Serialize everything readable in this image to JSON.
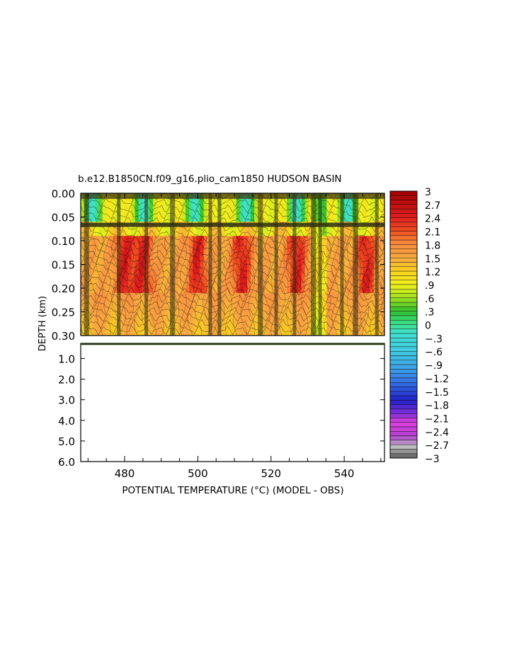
{
  "chart_data": {
    "type": "heatmap",
    "title": "b.e12.B1850CN.f09_g16.plio_cam1850 HUDSON BASIN",
    "xlabel": "POTENTIAL TEMPERATURE (°C) (MODEL - OBS)",
    "ylabel": "DEPTH (km)",
    "xlim": [
      468,
      551
    ],
    "x_ticks": [
      480,
      500,
      520,
      540
    ],
    "upper_panel": {
      "ylim": [
        0.0,
        0.3
      ],
      "y_tick_values": [
        0.0,
        0.05,
        0.1,
        0.15,
        0.2,
        0.25,
        0.3
      ],
      "y_tick_labels": [
        "0.00",
        "0.05",
        "0.10",
        "0.15",
        "0.20",
        "0.25",
        "0.30"
      ]
    },
    "lower_panel": {
      "ylim": [
        0.3,
        6.0
      ],
      "y_tick_values": [
        1,
        2,
        3,
        4,
        5,
        6
      ],
      "y_tick_labels": [
        "1.0",
        "2.0",
        "3.0",
        "4.0",
        "5.0",
        "6.0"
      ]
    },
    "colorbar": {
      "min": -3,
      "max": 3,
      "labels": [
        "3",
        "2.7",
        "2.4",
        "2.1",
        "1.8",
        "1.5",
        "1.2",
        ".9",
        ".6",
        ".3",
        "0",
        "-.3",
        "-.6",
        "-.9",
        "-1.2",
        "-1.5",
        "-1.8",
        "-2.1",
        "-2.4",
        "-2.7",
        "-3"
      ]
    },
    "field_summary": {
      "surface_layer_0_to_0.06km": "mostly 0.3 to 1.2",
      "layer_0.1_to_0.2km": "maxima near 2.1 to 2.4",
      "layer_0.2_to_0.3km": "about 1.5 to 1.8",
      "maxima_x": [
        480,
        485,
        500,
        512,
        527,
        546
      ]
    }
  }
}
